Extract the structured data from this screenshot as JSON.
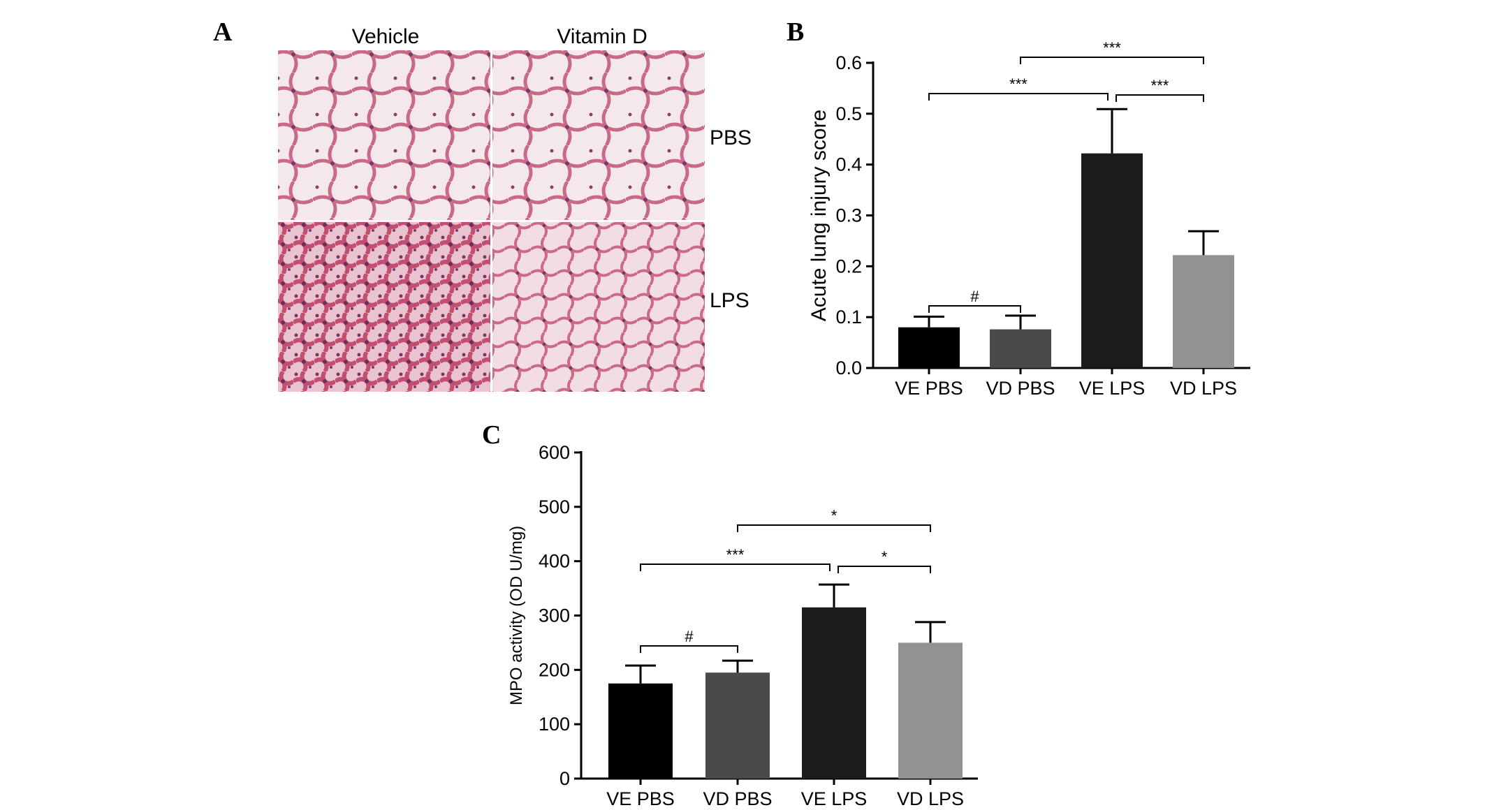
{
  "colors": {
    "VE PBS": "#000000",
    "VD PBS": "#4a4a4a",
    "VE LPS": "#1c1c1c",
    "VD LPS": "#929295",
    "tissue_stain": "#c96b86",
    "tissue_background": "#f4e4ea"
  },
  "panel_a": {
    "letter": "A",
    "columns": [
      "Vehicle",
      "Vitamin D"
    ],
    "rows": [
      "PBS",
      "LPS"
    ]
  },
  "panel_b": {
    "letter": "B"
  },
  "panel_c": {
    "letter": "C"
  },
  "chart_data": [
    {
      "id": "B",
      "type": "bar",
      "title": "",
      "xlabel": "",
      "ylabel": "Acute lung injury score",
      "categories": [
        "VE PBS",
        "VD PBS",
        "VE LPS",
        "VD LPS"
      ],
      "values": [
        0.08,
        0.076,
        0.422,
        0.222
      ],
      "errors": [
        0.021,
        0.027,
        0.087,
        0.047
      ],
      "ylim": [
        0,
        0.6
      ],
      "yticks": [
        "0.0",
        "0.1",
        "0.2",
        "0.3",
        "0.4",
        "0.5",
        "0.6"
      ],
      "grid": false,
      "legend": "none",
      "significance": [
        {
          "from": 0,
          "to": 1,
          "label": "#"
        },
        {
          "from": 0,
          "to": 2,
          "label": "***"
        },
        {
          "from": 2,
          "to": 3,
          "label": "***"
        },
        {
          "from": 1,
          "to": 3,
          "label": "***"
        }
      ]
    },
    {
      "id": "C",
      "type": "bar",
      "title": "",
      "xlabel": "",
      "ylabel": "MPO activity (OD U/mg)",
      "categories": [
        "VE PBS",
        "VD PBS",
        "VE LPS",
        "VD LPS"
      ],
      "values": [
        175,
        195,
        315,
        250
      ],
      "errors": [
        33,
        22,
        42,
        38
      ],
      "ylim": [
        0,
        600
      ],
      "yticks": [
        "0",
        "100",
        "200",
        "300",
        "400",
        "500",
        "600"
      ],
      "grid": false,
      "legend": "none",
      "significance": [
        {
          "from": 0,
          "to": 1,
          "label": "#"
        },
        {
          "from": 0,
          "to": 2,
          "label": "***"
        },
        {
          "from": 2,
          "to": 3,
          "label": "*"
        },
        {
          "from": 1,
          "to": 3,
          "label": "*"
        }
      ]
    }
  ]
}
